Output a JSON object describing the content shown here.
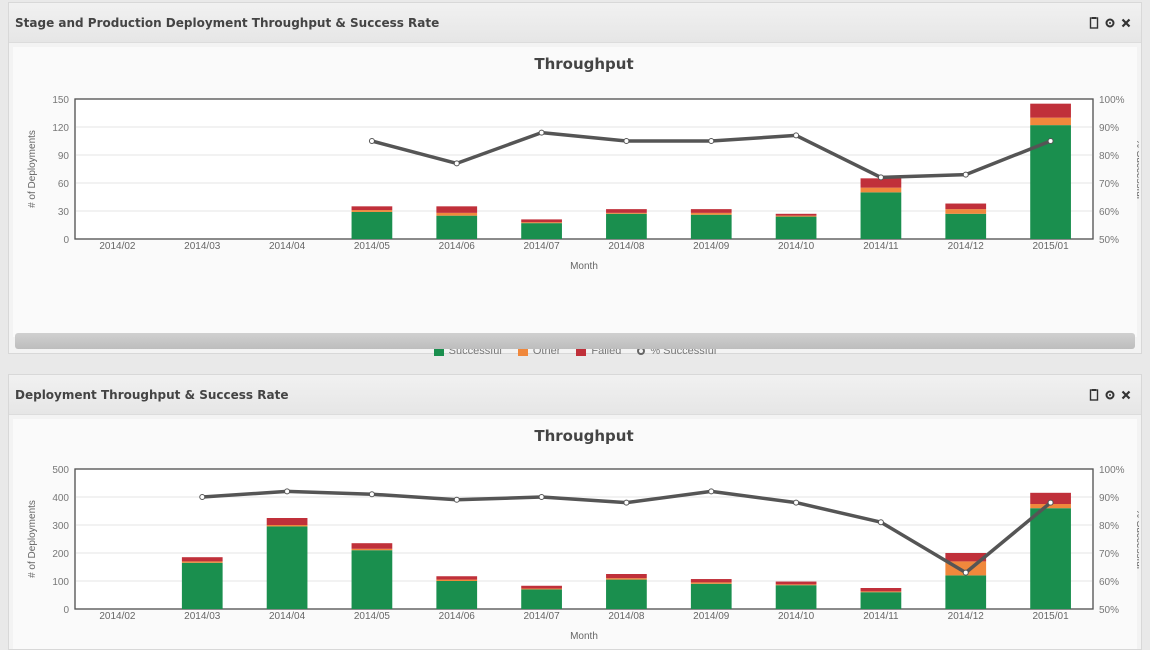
{
  "panels": [
    {
      "title": "Stage and Production Deployment Throughput & Success Rate",
      "icons": [
        "clipboard-icon",
        "settings-icon",
        "close-icon"
      ]
    },
    {
      "title": "Deployment Throughput & Success Rate",
      "icons": [
        "clipboard-icon",
        "settings-icon",
        "close-icon"
      ]
    }
  ],
  "legend": {
    "items": [
      {
        "label": "Successful",
        "color": "#1a8f4e"
      },
      {
        "label": "Other",
        "color": "#f0883c"
      },
      {
        "label": "Failed",
        "color": "#c0303a"
      },
      {
        "label": "% Successful",
        "color": "#555555"
      }
    ]
  },
  "chart_data": [
    {
      "type": "bar",
      "title": "Throughput",
      "xlabel": "Month",
      "ylabel": "# of Deployments",
      "y2label": "% Successful",
      "ylim": [
        0,
        150
      ],
      "yticks": [
        0,
        30,
        60,
        90,
        120,
        150
      ],
      "y2lim": [
        50,
        100
      ],
      "y2ticks": [
        "50%",
        "60%",
        "70%",
        "80%",
        "90%",
        "100%"
      ],
      "y2tick_values": [
        50,
        60,
        70,
        80,
        90,
        100
      ],
      "categories": [
        "2014/02",
        "2014/03",
        "2014/04",
        "2014/05",
        "2014/06",
        "2014/07",
        "2014/08",
        "2014/09",
        "2014/10",
        "2014/11",
        "2014/12",
        "2015/01"
      ],
      "stacked": true,
      "colors": {
        "Successful": "#1a8f4e",
        "Other": "#f0883c",
        "Failed": "#c0303a",
        "line": "#555555"
      },
      "series": [
        {
          "name": "Successful",
          "values": [
            0,
            0,
            0,
            29,
            25,
            17,
            27,
            26,
            24,
            50,
            27,
            122
          ]
        },
        {
          "name": "Other",
          "values": [
            0,
            0,
            0,
            2,
            3,
            1,
            1,
            2,
            1,
            5,
            5,
            8
          ]
        },
        {
          "name": "Failed",
          "values": [
            0,
            0,
            0,
            4,
            7,
            3,
            4,
            4,
            2,
            10,
            6,
            15
          ]
        }
      ],
      "line": {
        "name": "% Successful",
        "values": [
          null,
          null,
          null,
          85,
          77,
          88,
          85,
          85,
          87,
          72,
          73,
          85
        ]
      },
      "legend_position": "bottom"
    },
    {
      "type": "bar",
      "title": "Throughput",
      "xlabel": "Month",
      "ylabel": "# of Deployments",
      "y2label": "% Successful",
      "ylim": [
        0,
        500
      ],
      "yticks": [
        0,
        100,
        200,
        300,
        400,
        500
      ],
      "y2lim": [
        50,
        100
      ],
      "y2ticks": [
        "50%",
        "60%",
        "70%",
        "80%",
        "90%",
        "100%"
      ],
      "y2tick_values": [
        50,
        60,
        70,
        80,
        90,
        100
      ],
      "categories": [
        "2014/02",
        "2014/03",
        "2014/04",
        "2014/05",
        "2014/06",
        "2014/07",
        "2014/08",
        "2014/09",
        "2014/10",
        "2014/11",
        "2014/12",
        "2015/01"
      ],
      "stacked": true,
      "colors": {
        "Successful": "#1a8f4e",
        "Other": "#f0883c",
        "Failed": "#c0303a",
        "line": "#555555"
      },
      "series": [
        {
          "name": "Successful",
          "values": [
            0,
            165,
            295,
            210,
            100,
            70,
            105,
            90,
            85,
            60,
            120,
            360
          ]
        },
        {
          "name": "Other",
          "values": [
            0,
            5,
            5,
            5,
            5,
            3,
            5,
            5,
            3,
            3,
            50,
            15
          ]
        },
        {
          "name": "Failed",
          "values": [
            0,
            15,
            25,
            20,
            12,
            10,
            15,
            12,
            10,
            12,
            30,
            40
          ]
        }
      ],
      "line": {
        "name": "% Successful",
        "values": [
          null,
          90,
          92,
          91,
          89,
          90,
          88,
          92,
          88,
          81,
          63,
          88
        ]
      }
    }
  ]
}
